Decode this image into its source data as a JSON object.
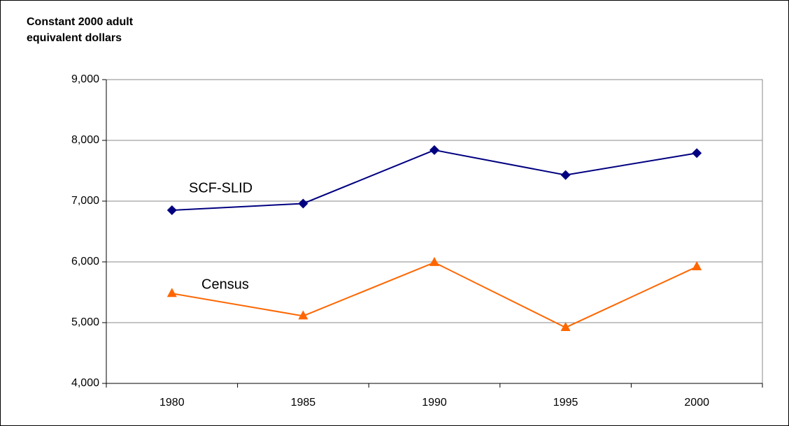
{
  "chart_data": {
    "type": "line",
    "y_label": "Constant 2000 adult equivalent dollars",
    "categories": [
      "1980",
      "1985",
      "1990",
      "1995",
      "2000"
    ],
    "series": [
      {
        "name": "SCF-SLID",
        "color": "#000080",
        "marker": "diamond",
        "values": [
          6850,
          6960,
          7840,
          7430,
          7790
        ]
      },
      {
        "name": "Census",
        "color": "#ff6600",
        "marker": "triangle",
        "values": [
          5480,
          5110,
          5990,
          4920,
          5920
        ]
      }
    ],
    "ylim": [
      4000,
      9000
    ],
    "yticks": [
      {
        "value": 4000,
        "label": "4,000"
      },
      {
        "value": 5000,
        "label": "5,000"
      },
      {
        "value": 6000,
        "label": "6,000"
      },
      {
        "value": 7000,
        "label": "7,000"
      },
      {
        "value": 8000,
        "label": "8,000"
      },
      {
        "value": 9000,
        "label": "9,000"
      }
    ],
    "grid": true
  }
}
